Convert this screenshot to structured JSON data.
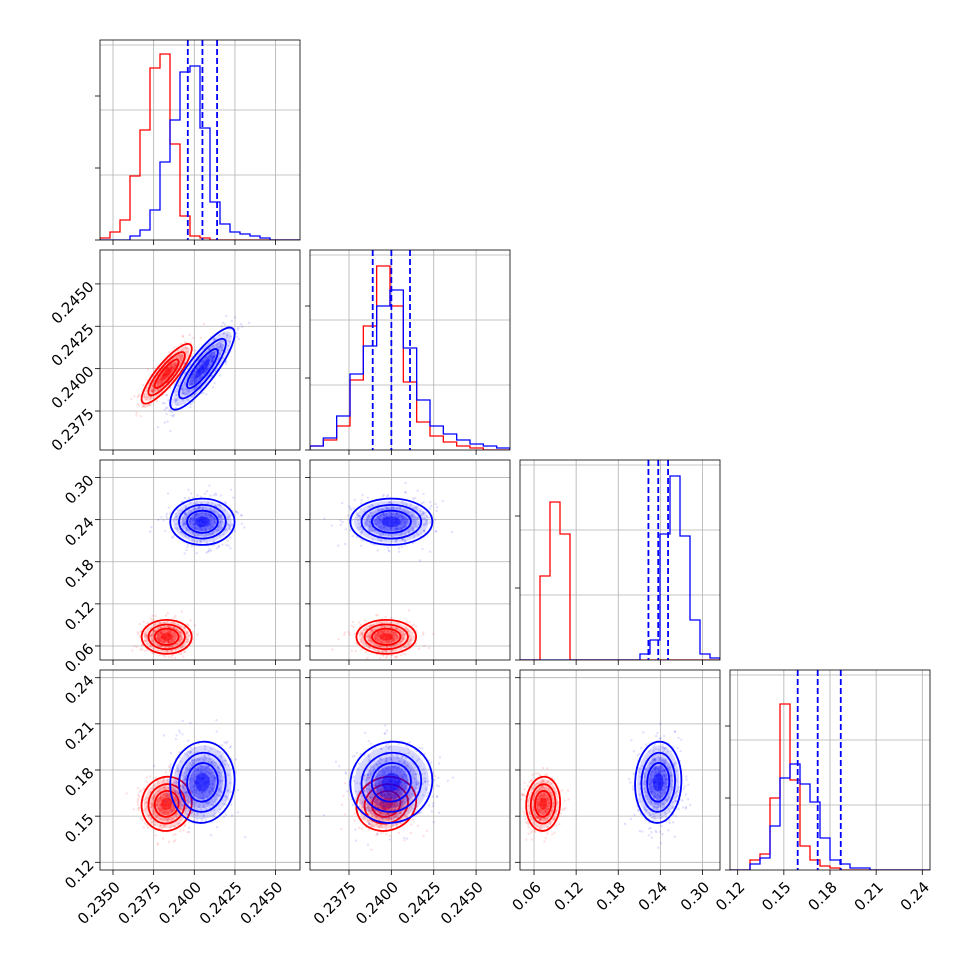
{
  "chart_data": {
    "type": "corner",
    "grid": true,
    "params": [
      {
        "range": [
          0.2342,
          0.2465
        ],
        "ticks": [
          0.235,
          0.2375,
          0.24,
          0.2425,
          0.245
        ],
        "tick_labels": [
          "0.2350",
          "0.2375",
          "0.2400",
          "0.2425",
          "0.2450"
        ]
      },
      {
        "range": [
          0.2352,
          0.247
        ],
        "ticks": [
          0.2375,
          0.24,
          0.2425,
          0.245
        ],
        "tick_labels": [
          "0.2375",
          "0.2400",
          "0.2425",
          "0.2450"
        ]
      },
      {
        "range": [
          0.04,
          0.325
        ],
        "ticks": [
          0.06,
          0.12,
          0.18,
          0.24,
          0.3
        ],
        "tick_labels": [
          "0.06",
          "0.12",
          "0.18",
          "0.24",
          "0.30"
        ]
      },
      {
        "range": [
          0.115,
          0.245
        ],
        "ticks": [
          0.12,
          0.15,
          0.18,
          0.21,
          0.24
        ],
        "tick_labels": [
          "0.12",
          "0.15",
          "0.18",
          "0.21",
          "0.24"
        ]
      }
    ],
    "series": [
      {
        "color": "#ff0000",
        "means": [
          0.2383,
          0.2397,
          0.073,
          0.158
        ],
        "sigmas": [
          0.0007,
          0.0008,
          0.011,
          0.008
        ],
        "correlations": [
          [
            0,
            1,
            0.85
          ],
          [
            0,
            3,
            0.05
          ],
          [
            1,
            3,
            0.1
          ],
          [
            2,
            3,
            0.05
          ],
          [
            0,
            2,
            0.0
          ],
          [
            1,
            2,
            0.0
          ]
        ],
        "histograms": [
          [
            0.01,
            0.04,
            0.1,
            0.32,
            0.55,
            0.86,
            0.93,
            0.48,
            0.12,
            0.02,
            0.01,
            0.0,
            0.0,
            0.0,
            0.0,
            0.0,
            0.0,
            0.0,
            0.0,
            0.0
          ],
          [
            0.02,
            0.05,
            0.12,
            0.35,
            0.62,
            0.92,
            0.72,
            0.34,
            0.14,
            0.07,
            0.04,
            0.02,
            0.01,
            0.0,
            0.0
          ],
          [
            0.0,
            0.0,
            0.42,
            0.79,
            0.63,
            0.0,
            0.0,
            0.0,
            0.0,
            0.0,
            0.0,
            0.0,
            0.0,
            0.0,
            0.0,
            0.0,
            0.0,
            0.0,
            0.0,
            0.0
          ],
          [
            0.0,
            0.0,
            0.05,
            0.08,
            0.36,
            0.83,
            0.45,
            0.12,
            0.05,
            0.02,
            0.01,
            0.0,
            0.0,
            0.0,
            0.0,
            0.0,
            0.0,
            0.0,
            0.0,
            0.0
          ]
        ]
      },
      {
        "color": "#0000ff",
        "means": [
          0.2405,
          0.24,
          0.237,
          0.172
        ],
        "sigmas": [
          0.0009,
          0.0011,
          0.015,
          0.012
        ],
        "correlations": [
          [
            0,
            1,
            0.85
          ],
          [
            0,
            3,
            0.05
          ],
          [
            1,
            3,
            0.05
          ],
          [
            2,
            3,
            0.05
          ],
          [
            0,
            2,
            0.0
          ],
          [
            1,
            2,
            0.0
          ]
        ],
        "quantiles": [
          [
            0.2396,
            0.2405,
            0.2414
          ],
          [
            0.2389,
            0.24,
            0.2411
          ],
          [
            0.223,
            0.237,
            0.251
          ],
          [
            0.159,
            0.172,
            0.187
          ]
        ],
        "histograms": [
          [
            0.0,
            0.0,
            0.0,
            0.02,
            0.05,
            0.15,
            0.39,
            0.6,
            0.84,
            0.87,
            0.56,
            0.19,
            0.08,
            0.04,
            0.03,
            0.02,
            0.01,
            0.0,
            0.0,
            0.0
          ],
          [
            0.02,
            0.06,
            0.17,
            0.38,
            0.52,
            0.72,
            0.8,
            0.51,
            0.25,
            0.12,
            0.08,
            0.05,
            0.03,
            0.02,
            0.01
          ],
          [
            0.0,
            0.0,
            0.0,
            0.0,
            0.0,
            0.0,
            0.0,
            0.0,
            0.0,
            0.0,
            0.0,
            0.0,
            0.03,
            0.1,
            0.63,
            0.92,
            0.62,
            0.2,
            0.03,
            0.01
          ],
          [
            0.0,
            0.0,
            0.03,
            0.06,
            0.22,
            0.46,
            0.53,
            0.43,
            0.34,
            0.16,
            0.05,
            0.03,
            0.01,
            0.01,
            0.0,
            0.0,
            0.0,
            0.0,
            0.0,
            0.0
          ]
        ]
      }
    ]
  }
}
